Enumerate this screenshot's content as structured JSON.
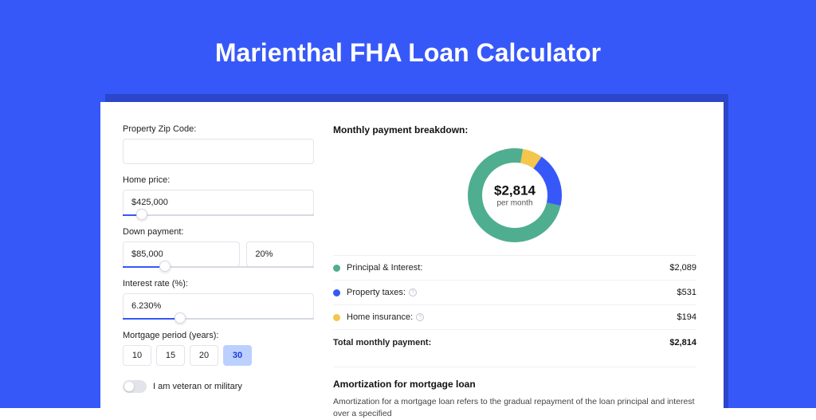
{
  "page": {
    "title": "Marienthal FHA Loan Calculator",
    "colors": {
      "banner_bg": "#3758f9",
      "card_shadow": "#2b46c8",
      "card_bg": "#ffffff",
      "text": "#222222",
      "border": "#e2e4ea"
    }
  },
  "form": {
    "zip": {
      "label": "Property Zip Code:",
      "value": ""
    },
    "home_price": {
      "label": "Home price:",
      "value": "$425,000",
      "slider_pct": 10
    },
    "down_payment": {
      "label": "Down payment:",
      "amount": "$85,000",
      "percent": "20%",
      "slider_pct": 22
    },
    "interest_rate": {
      "label": "Interest rate (%):",
      "value": "6.230%",
      "slider_pct": 30
    },
    "mortgage_period": {
      "label": "Mortgage period (years):",
      "options": [
        "10",
        "15",
        "20",
        "30"
      ],
      "selected": "30"
    },
    "veteran": {
      "label": "I am veteran or military",
      "value": false
    }
  },
  "breakdown": {
    "title": "Monthly payment breakdown:",
    "donut": {
      "amount": "$2,814",
      "sub": "per month",
      "segments": [
        {
          "label": "Principal & Interest:",
          "value": "$2,089",
          "color": "#4fae8f",
          "pct": 74.2
        },
        {
          "label": "Property taxes:",
          "value": "$531",
          "color": "#3758f9",
          "pct": 18.9,
          "info": true
        },
        {
          "label": "Home insurance:",
          "value": "$194",
          "color": "#f4c64d",
          "pct": 6.9,
          "info": true
        }
      ],
      "stroke_width": 18,
      "radius": 50,
      "background": "#ffffff"
    },
    "total": {
      "label": "Total monthly payment:",
      "value": "$2,814"
    }
  },
  "amortization": {
    "title": "Amortization for mortgage loan",
    "text": "Amortization for a mortgage loan refers to the gradual repayment of the loan principal and interest over a specified"
  }
}
